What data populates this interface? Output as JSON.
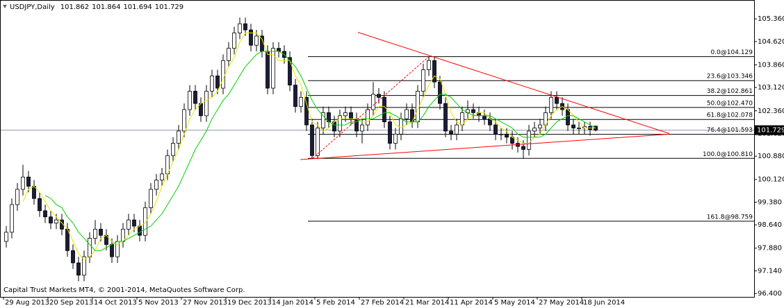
{
  "chart_data": {
    "type": "candlestick",
    "symbol": "USDJPY,Daily",
    "footer": "Capital Trust Markets MT4, © 2001-2014, MetaQuotes Software Corp.",
    "xlim": [
      -1.125,
      134.5
    ],
    "ylim": [
      96.29,
      105.93
    ],
    "xticks": [
      {
        "value": 0,
        "label": "29 Aug 2013"
      },
      {
        "value": 8,
        "label": "20 Sep 2013"
      },
      {
        "value": 16,
        "label": "14 Oct 2013"
      },
      {
        "value": 24,
        "label": "5 Nov 2013"
      },
      {
        "value": 32,
        "label": "27 Nov 2013"
      },
      {
        "value": 40,
        "label": "19 Dec 2013"
      },
      {
        "value": 48,
        "label": "14 Jan 2014"
      },
      {
        "value": 56,
        "label": "5 Feb 2014"
      },
      {
        "value": 64,
        "label": "27 Feb 2014"
      },
      {
        "value": 72,
        "label": "21 Mar 2014"
      },
      {
        "value": 80,
        "label": "11 Apr 2014"
      },
      {
        "value": 88,
        "label": "5 May 2014"
      },
      {
        "value": 96,
        "label": "27 May 2014"
      },
      {
        "value": 104,
        "label": "18 Jun 2014"
      }
    ],
    "yticks": [
      {
        "value": 105.36,
        "label": "105.360"
      },
      {
        "value": 104.62,
        "label": "104.620"
      },
      {
        "value": 103.86,
        "label": "103.860"
      },
      {
        "value": 103.12,
        "label": "103.120"
      },
      {
        "value": 102.36,
        "label": "102.360"
      },
      {
        "value": 101.62,
        "label": "101.620"
      },
      {
        "value": 100.88,
        "label": "100.880"
      },
      {
        "value": 100.12,
        "label": "100.120"
      },
      {
        "value": 99.38,
        "label": "99.380"
      },
      {
        "value": 98.64,
        "label": "98.640"
      },
      {
        "value": 97.88,
        "label": "97.880"
      },
      {
        "value": 97.14,
        "label": "97.140"
      },
      {
        "value": 96.4,
        "label": "96.400"
      }
    ],
    "bull_color": "#ffffff",
    "bear_color": "#1c1c3a",
    "outline_color": "#000000",
    "open": [
      98.1,
      98.4,
      99.3,
      99.8,
      100.2,
      99.9,
      99.5,
      99.1,
      98.9,
      98.7,
      98.8,
      98.5,
      97.8,
      97.4,
      97.0,
      97.6,
      98.2,
      98.5,
      98.3,
      98.0,
      97.6,
      98.1,
      98.5,
      98.8,
      98.6,
      98.3,
      99.2,
      99.8,
      100.1,
      100.3,
      100.9,
      101.3,
      101.7,
      102.4,
      103.0,
      102.6,
      102.2,
      103.0,
      103.5,
      103.1,
      104.0,
      104.4,
      104.9,
      105.2,
      105.0,
      104.5,
      104.8,
      104.3,
      103.1,
      104.4,
      104.3,
      104.1,
      103.2,
      102.5,
      102.8,
      101.9,
      100.9,
      101.8,
      102.3,
      102.0,
      101.7,
      102.2,
      102.3,
      102.1,
      101.7,
      101.9,
      102.4,
      102.9,
      102.8,
      102.0,
      101.3,
      101.6,
      102.1,
      102.4,
      102.0,
      103.0,
      103.7,
      104.0,
      103.3,
      102.6,
      101.7,
      101.6,
      101.9,
      102.3,
      102.4,
      102.3,
      102.2,
      102.1,
      101.9,
      101.6,
      101.6,
      101.5,
      101.3,
      101.2,
      101.1,
      101.7,
      101.8,
      101.9,
      102.3,
      102.8,
      102.6,
      102.4,
      101.9,
      101.8,
      101.8,
      101.85,
      101.862
    ],
    "high": [
      98.6,
      99.5,
      100.0,
      100.6,
      100.4,
      100.1,
      99.7,
      99.3,
      99.1,
      99.0,
      99.0,
      98.7,
      98.0,
      97.6,
      97.8,
      98.4,
      98.8,
      98.7,
      98.5,
      98.2,
      98.3,
      98.7,
      99.0,
      99.0,
      98.8,
      99.4,
      100.0,
      100.3,
      100.5,
      101.1,
      101.5,
      101.9,
      102.6,
      103.2,
      103.2,
      102.8,
      103.2,
      103.7,
      103.7,
      104.2,
      104.6,
      105.1,
      105.4,
      105.4,
      105.2,
      105.0,
      105.0,
      104.5,
      104.6,
      104.6,
      104.5,
      104.3,
      103.4,
      103.0,
      103.0,
      102.1,
      102.0,
      102.5,
      102.5,
      102.2,
      102.4,
      102.5,
      102.5,
      102.3,
      102.1,
      102.6,
      103.3,
      103.1,
      103.0,
      102.2,
      101.8,
      102.3,
      102.6,
      102.6,
      103.2,
      103.9,
      104.13,
      104.1,
      103.5,
      102.8,
      101.9,
      102.1,
      102.5,
      102.7,
      102.6,
      102.5,
      102.4,
      102.3,
      102.1,
      101.8,
      101.8,
      101.7,
      101.5,
      101.4,
      101.9,
      102.0,
      102.1,
      102.5,
      103.0,
      103.0,
      102.8,
      102.6,
      102.1,
      102.0,
      102.0,
      102.0,
      101.864
    ],
    "low": [
      97.9,
      98.2,
      99.1,
      99.6,
      99.7,
      99.3,
      98.9,
      98.7,
      98.5,
      98.5,
      98.3,
      97.6,
      97.2,
      96.8,
      96.8,
      97.4,
      98.0,
      98.1,
      97.8,
      97.4,
      97.4,
      97.9,
      98.3,
      98.4,
      98.1,
      98.1,
      99.0,
      99.6,
      99.9,
      100.1,
      100.7,
      101.1,
      101.5,
      102.2,
      102.4,
      102.0,
      102.0,
      102.8,
      102.9,
      102.9,
      103.8,
      104.2,
      104.7,
      104.8,
      104.3,
      104.3,
      104.1,
      102.9,
      102.9,
      104.1,
      103.9,
      103.0,
      102.3,
      102.3,
      101.7,
      100.8,
      100.8,
      101.6,
      101.8,
      101.5,
      101.5,
      102.0,
      101.9,
      101.5,
      101.3,
      101.7,
      102.2,
      102.6,
      101.8,
      101.1,
      101.1,
      101.4,
      101.9,
      101.8,
      101.8,
      102.8,
      103.5,
      103.1,
      102.4,
      101.5,
      101.4,
      101.4,
      101.7,
      102.1,
      102.1,
      102.0,
      101.9,
      101.7,
      101.4,
      101.4,
      101.3,
      101.1,
      101.0,
      100.8,
      100.9,
      101.5,
      101.6,
      101.7,
      102.1,
      102.4,
      102.2,
      101.7,
      101.6,
      101.6,
      101.6,
      101.55,
      101.694
    ],
    "close": [
      98.4,
      99.3,
      99.8,
      100.2,
      99.9,
      99.5,
      99.1,
      98.9,
      98.7,
      98.8,
      98.5,
      97.8,
      97.4,
      97.0,
      97.6,
      98.2,
      98.5,
      98.3,
      98.0,
      97.6,
      98.1,
      98.5,
      98.8,
      98.6,
      98.3,
      99.2,
      99.8,
      100.1,
      100.3,
      100.9,
      101.3,
      101.7,
      102.4,
      103.0,
      102.6,
      102.2,
      103.0,
      103.5,
      103.1,
      104.0,
      104.4,
      104.9,
      105.2,
      105.0,
      104.5,
      104.8,
      104.3,
      103.1,
      104.4,
      104.3,
      104.1,
      103.2,
      102.5,
      102.8,
      101.9,
      100.9,
      101.8,
      102.3,
      102.0,
      101.7,
      102.2,
      102.3,
      102.1,
      101.7,
      101.9,
      102.4,
      102.9,
      102.8,
      102.0,
      101.3,
      101.6,
      102.1,
      102.4,
      102.0,
      103.0,
      103.7,
      104.0,
      103.3,
      102.6,
      101.7,
      101.6,
      101.9,
      102.3,
      102.4,
      102.3,
      102.2,
      102.1,
      101.9,
      101.6,
      101.6,
      101.5,
      101.3,
      101.2,
      101.1,
      101.7,
      101.8,
      101.9,
      102.3,
      102.8,
      102.6,
      102.4,
      101.9,
      101.8,
      101.8,
      101.85,
      101.75,
      101.729
    ],
    "indicators": [
      {
        "color": "#e6e600",
        "values": [
          null,
          null,
          null,
          99.4,
          99.8,
          99.9,
          99.7,
          99.4,
          99.1,
          98.9,
          98.7,
          98.5,
          98.1,
          97.7,
          97.5,
          97.6,
          97.8,
          98.2,
          98.3,
          98.1,
          98.0,
          98.1,
          98.3,
          98.5,
          98.6,
          98.7,
          99.0,
          99.4,
          99.9,
          100.3,
          100.7,
          101.1,
          101.6,
          102.1,
          102.4,
          102.6,
          102.7,
          102.8,
          103.0,
          103.4,
          103.8,
          104.1,
          104.6,
          104.9,
          104.9,
          104.9,
          104.7,
          104.2,
          104.2,
          104.0,
          104.0,
          104.0,
          103.5,
          103.2,
          102.6,
          102.0,
          101.9,
          101.7,
          101.8,
          102.0,
          102.1,
          102.1,
          102.1,
          102.1,
          102.0,
          102.0,
          102.2,
          102.5,
          102.5,
          102.3,
          101.9,
          101.8,
          101.9,
          102.0,
          102.4,
          102.8,
          103.2,
          103.5,
          103.4,
          102.9,
          102.3,
          102.0,
          101.9,
          102.1,
          102.2,
          102.3,
          102.3,
          102.1,
          102.0,
          101.8,
          101.7,
          101.5,
          101.4,
          101.3,
          101.3,
          101.5,
          101.6,
          101.9,
          102.2,
          102.4,
          102.5,
          102.4,
          102.2,
          102.0,
          101.8,
          101.8,
          101.8
        ]
      },
      {
        "color": "#00d000",
        "values": [
          null,
          null,
          null,
          null,
          null,
          null,
          null,
          99.6,
          99.5,
          99.3,
          99.2,
          98.9,
          98.7,
          98.4,
          98.2,
          98.0,
          97.8,
          97.8,
          97.9,
          98.0,
          98.1,
          98.1,
          98.2,
          98.3,
          98.4,
          98.5,
          98.6,
          98.8,
          99.0,
          99.3,
          99.6,
          99.9,
          100.3,
          100.7,
          101.1,
          101.4,
          101.7,
          102.1,
          102.4,
          102.7,
          102.9,
          103.2,
          103.5,
          103.8,
          104.0,
          104.2,
          104.3,
          104.3,
          104.3,
          104.3,
          104.2,
          104.0,
          103.8,
          103.5,
          103.1,
          102.7,
          102.4,
          102.2,
          102.0,
          101.9,
          101.9,
          101.9,
          102.0,
          102.0,
          102.1,
          102.1,
          102.1,
          102.2,
          102.3,
          102.3,
          102.2,
          102.1,
          102.0,
          102.0,
          102.0,
          102.2,
          102.5,
          102.7,
          102.9,
          102.9,
          102.8,
          102.6,
          102.4,
          102.3,
          102.2,
          102.2,
          102.2,
          102.2,
          102.1,
          102.0,
          101.9,
          101.8,
          101.6,
          101.5,
          101.5,
          101.5,
          101.5,
          101.6,
          101.8,
          102.0,
          102.1,
          102.2,
          102.2,
          102.1,
          102.0,
          101.9,
          101.8
        ]
      }
    ],
    "fib_levels": [
      {
        "value": 104.129,
        "label": "0.0@104.129"
      },
      {
        "value": 103.346,
        "label": "23.6@103.346"
      },
      {
        "value": 102.861,
        "label": "38.2@102.861"
      },
      {
        "value": 102.47,
        "label": "50.0@102.470"
      },
      {
        "value": 102.078,
        "label": "61.8@102.078"
      },
      {
        "value": 101.593,
        "label": "76.4@101.593"
      },
      {
        "value": 100.81,
        "label": "100.0@100.810"
      },
      {
        "value": 98.759,
        "label": "161.8@98.759"
      }
    ],
    "fib_color": "#000000",
    "trendlines": [
      {
        "x": [
          63.25,
          119.25
        ],
        "y": [
          104.92,
          101.62
        ],
        "color": "#ff0000",
        "style": "solid"
      },
      {
        "x": [
          52.9,
          119.25
        ],
        "y": [
          100.77,
          101.6
        ],
        "color": "#ff0000",
        "style": "solid"
      },
      {
        "x": [
          55.1,
          76
        ],
        "y": [
          100.81,
          104.13
        ],
        "color": "#ff0000",
        "style": "dashed"
      }
    ],
    "price_line_color": "#8c96a8"
  }
}
